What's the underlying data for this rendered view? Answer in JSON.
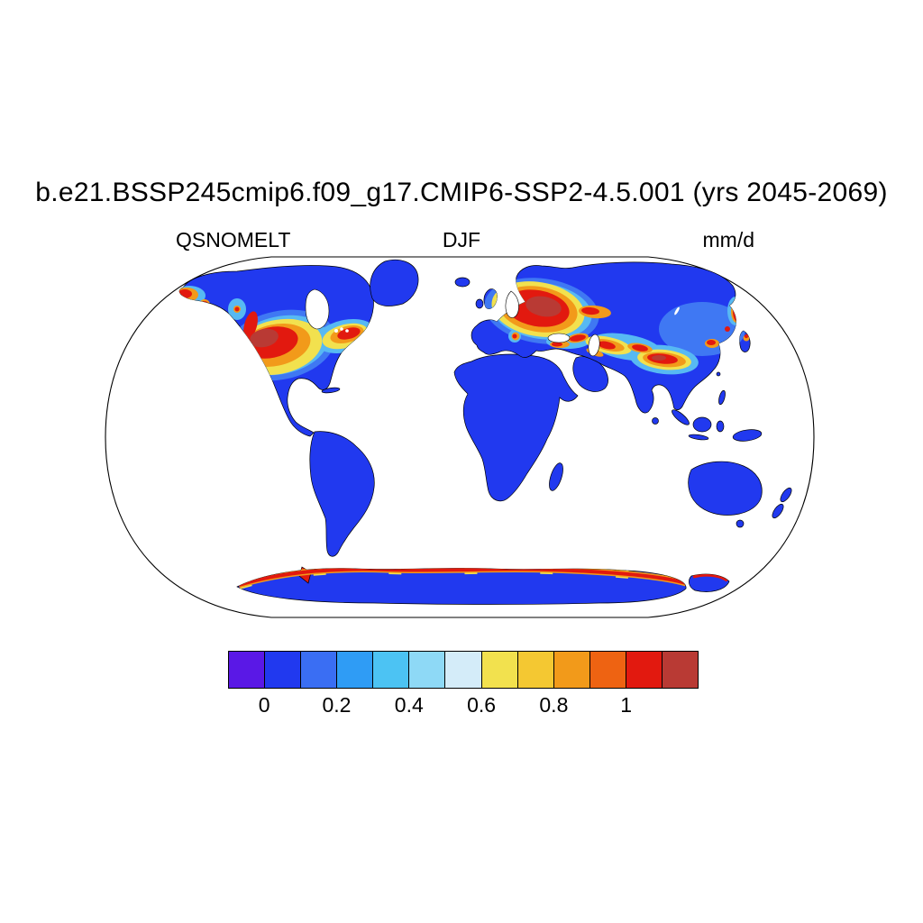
{
  "title": "b.e21.BSSP245cmip6.f09_g17.CMIP6-SSP2-4.5.001 (yrs 2045-2069)",
  "map_header": {
    "variable": "QSNOMELT",
    "season": "DJF",
    "units": "mm/d"
  },
  "map": {
    "projection": "Robinson",
    "colors": {
      "outline": "#000000",
      "coast": "#000000",
      "ocean": "#ffffff",
      "land": "#2139ef",
      "mid_blue": "#3f78f3",
      "light_blue": "#57b9f3",
      "yellow": "#f2e14e",
      "orange": "#f29a1a",
      "red": "#e2190f",
      "dark_red": "#b93a34",
      "lake": "#ffffff"
    }
  },
  "colorbar": {
    "colors": [
      "#5a18e6",
      "#2139ef",
      "#3a6ef3",
      "#2f9cf5",
      "#4cc3f3",
      "#8ed9f6",
      "#d4ecf9",
      "#f2e14e",
      "#f4c832",
      "#f29a1a",
      "#ee6312",
      "#e2190f",
      "#b93a34"
    ],
    "ticks": [
      {
        "label": "0",
        "boundary": 1
      },
      {
        "label": "0.2",
        "boundary": 3
      },
      {
        "label": "0.4",
        "boundary": 5
      },
      {
        "label": "0.6",
        "boundary": 7
      },
      {
        "label": "0.8",
        "boundary": 9
      },
      {
        "label": "1",
        "boundary": 11
      }
    ]
  },
  "chart_data": {
    "type": "heatmap",
    "title": "b.e21.BSSP245cmip6.f09_g17.CMIP6-SSP2-4.5.001 (yrs 2045-2069)",
    "variable": "QSNOMELT",
    "season": "DJF",
    "units": "mm/d",
    "projection": "Robinson world map",
    "levels": [
      0,
      0.1,
      0.2,
      0.3,
      0.4,
      0.5,
      0.6,
      0.7,
      0.8,
      0.9,
      1.0,
      1.1
    ],
    "palette": [
      "#5a18e6",
      "#2139ef",
      "#3a6ef3",
      "#2f9cf5",
      "#4cc3f3",
      "#8ed9f6",
      "#d4ecf9",
      "#f2e14e",
      "#f4c832",
      "#f29a1a",
      "#ee6312",
      "#e2190f",
      "#b93a34"
    ],
    "tick_labels": [
      "0",
      "0.2",
      "0.4",
      "0.6",
      "0.8",
      "1"
    ],
    "legend_position": "bottom",
    "regions": [
      {
        "name": "Most land (tropics, Africa, South America, Australia, high-Arctic Canada and Siberia, Greenland interior)",
        "value_mm_d": "~0 (deep blue)"
      },
      {
        "name": "Western/central United States (Rockies, Sierra Nevada, Cascades)",
        "value_mm_d": "0.6 to >1 (orange-red core)"
      },
      {
        "name": "Great Lakes / New England / southeastern Canada",
        "value_mm_d": "0.4 to >1"
      },
      {
        "name": "Scandinavia and western Russia",
        "value_mm_d": ">1 (large red blob)"
      },
      {
        "name": "Central Asia mountain band (Caucasus, Tien Shan, Tibetan Plateau, Himalayas)",
        "value_mm_d": "0.5 to >1"
      },
      {
        "name": "Northeast China, Kamchatka, Sakhalin, northern Japan, Alps, Turkey, coastal Alaska",
        "value_mm_d": "0.4 to >1 (scattered warm spots)"
      },
      {
        "name": "Antarctic coastal fringe",
        "value_mm_d": ">1 (red rim), interior ~0"
      },
      {
        "name": "Oceans",
        "value_mm_d": "no data (white)"
      }
    ]
  }
}
